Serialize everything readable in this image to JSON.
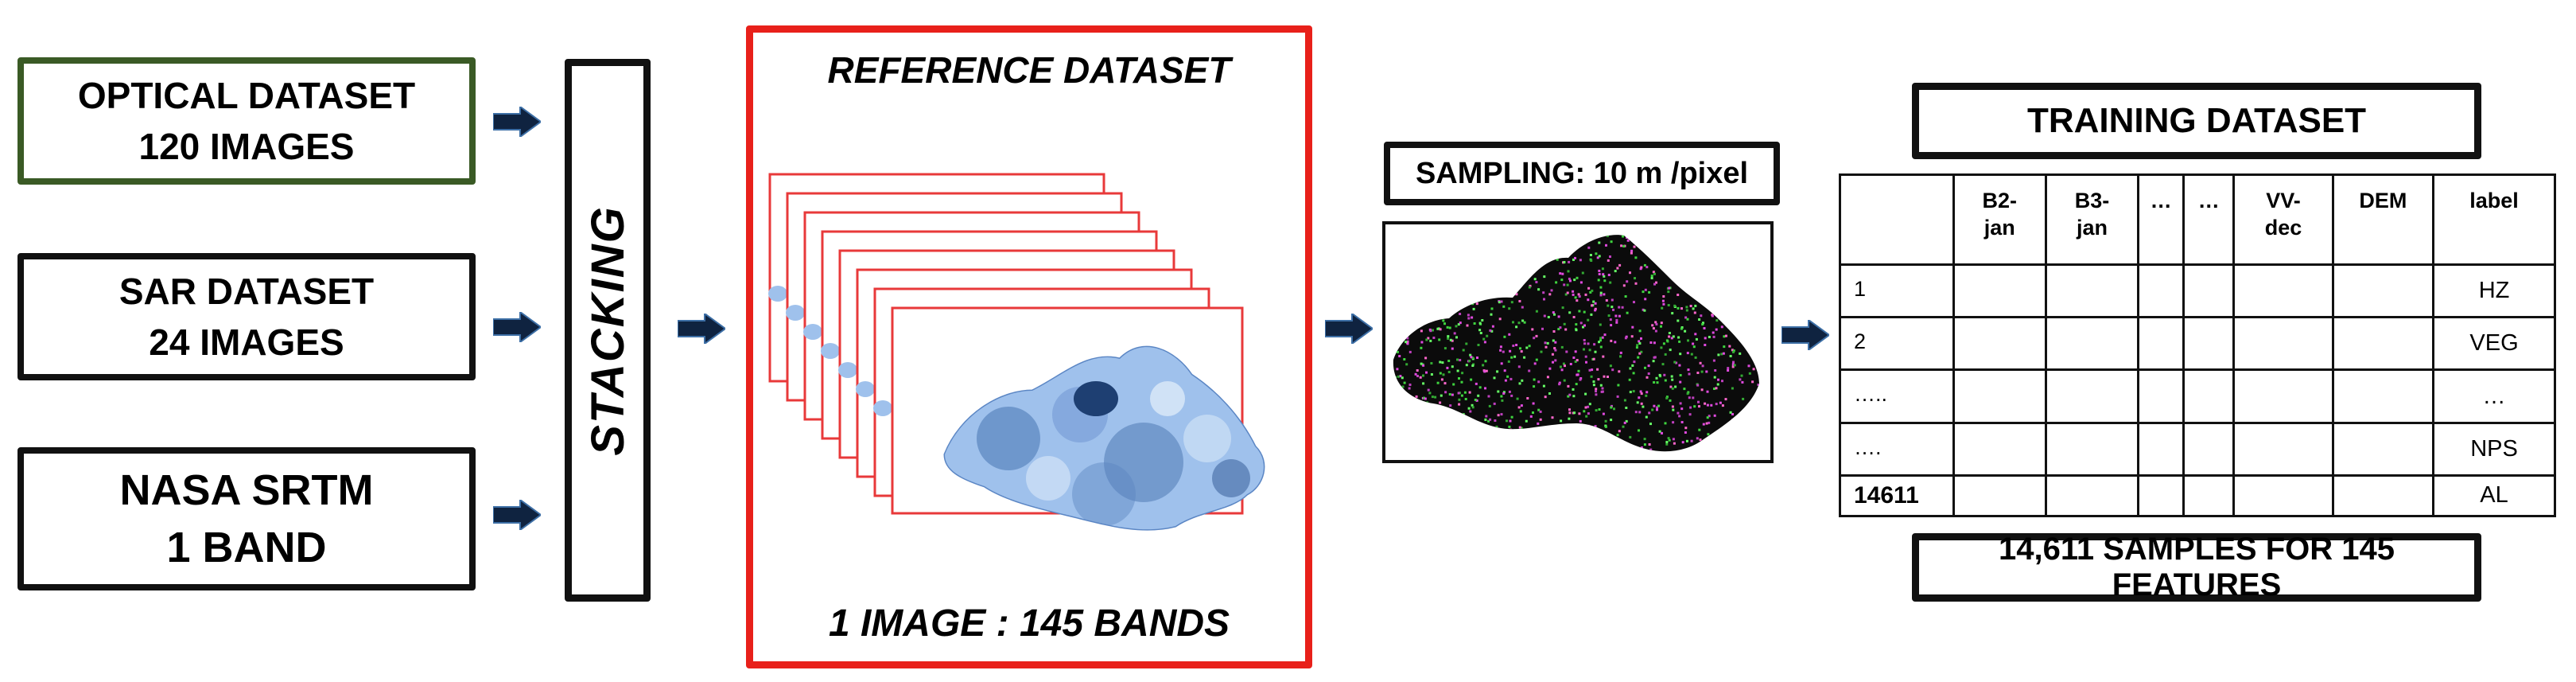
{
  "inputs": {
    "optical": {
      "line1": "OPTICAL DATASET",
      "line2": "120 IMAGES"
    },
    "sar": {
      "line1": "SAR DATASET",
      "line2": "24 IMAGES"
    },
    "nasa": {
      "line1": "NASA SRTM",
      "line2": "1 BAND"
    }
  },
  "stacking": {
    "label": "STACKING"
  },
  "reference": {
    "title": "REFERENCE DATASET",
    "bottom": "1 IMAGE : 145 BANDS",
    "layer_count": 8
  },
  "sampling": {
    "label": "SAMPLING: 10 m /pixel"
  },
  "training": {
    "title": "TRAINING DATASET",
    "headers": [
      "",
      "B2-\njan",
      "B3-\njan",
      "…",
      "…",
      "VV-\ndec",
      "DEM",
      "label"
    ],
    "rows": [
      {
        "id": "1",
        "label": "HZ"
      },
      {
        "id": "2",
        "label": "VEG"
      },
      {
        "id": "…..",
        "label": "…"
      },
      {
        "id": "….",
        "label": "NPS"
      },
      {
        "id": "14611",
        "label": "AL"
      }
    ]
  },
  "summary": {
    "label": "14,611 SAMPLES FOR 145 FEATURES"
  },
  "colors": {
    "optical_border": "#3a5a25",
    "reference_border": "#e8201a",
    "arrow_fill": "#0f2340",
    "layer_border": "#e8393a",
    "map_blue": "#7aa6df"
  }
}
